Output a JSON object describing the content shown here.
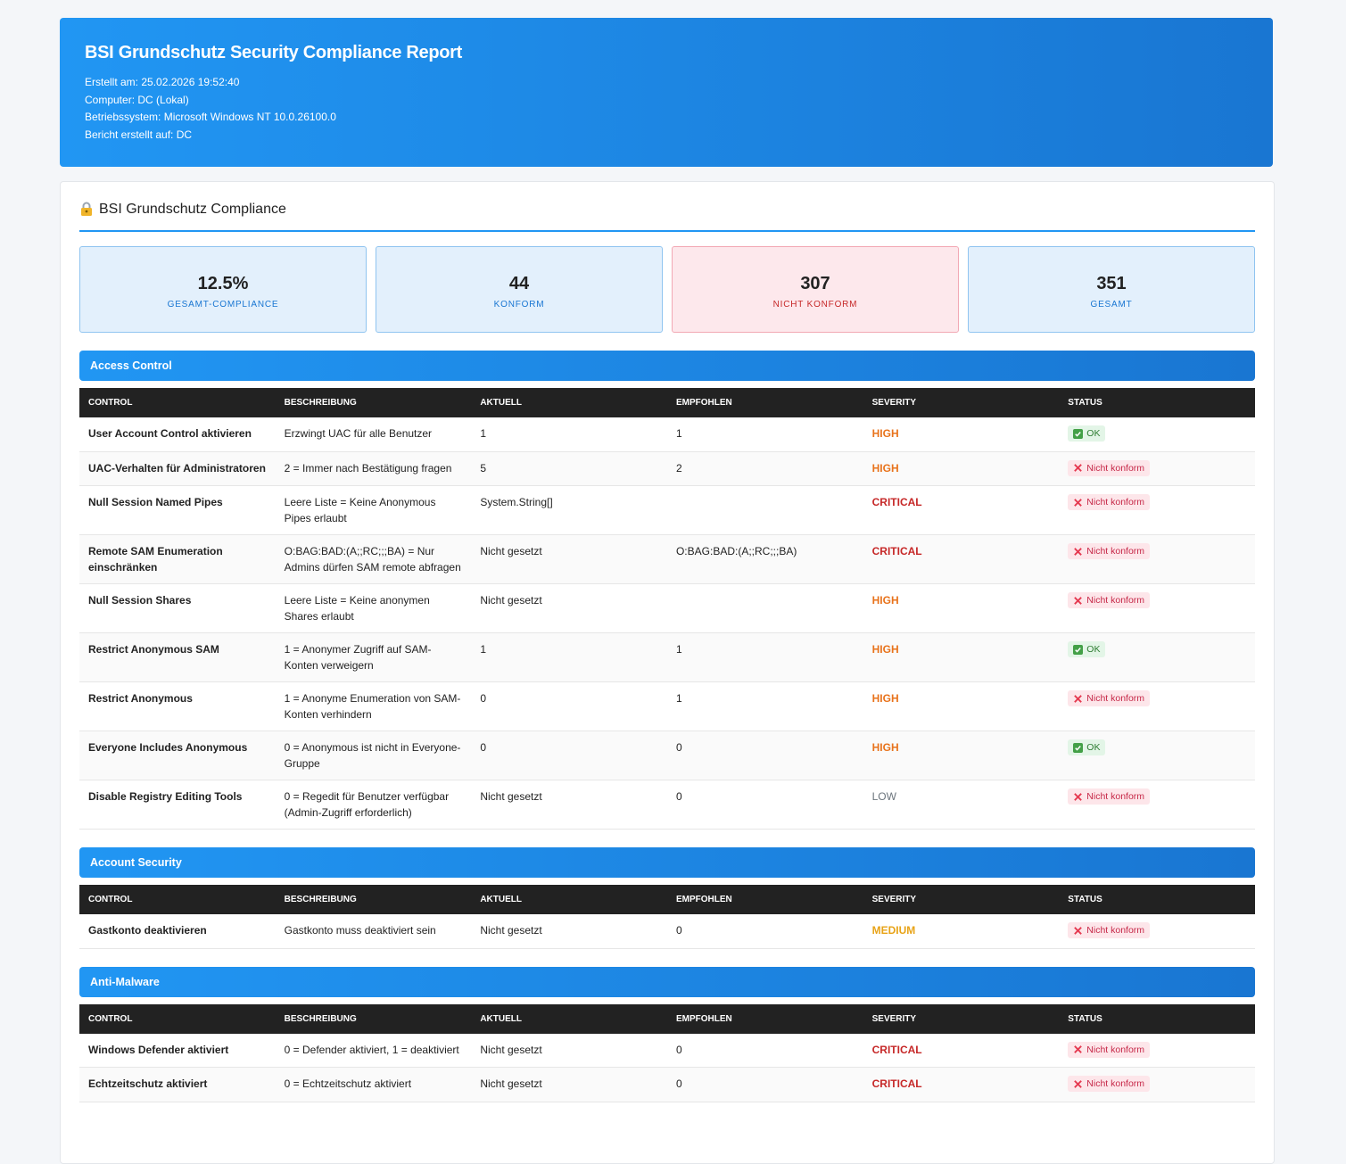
{
  "header": {
    "title": "BSI Grundschutz Security Compliance Report",
    "meta": [
      "Erstellt am: 25.02.2026 19:52:40",
      "Computer: DC (Lokal)",
      "Betriebssystem: Microsoft Windows NT 10.0.26100.0",
      "Bericht erstellt auf: DC"
    ]
  },
  "card": {
    "title": "BSI Grundschutz Compliance"
  },
  "stats": [
    {
      "value": "12.5%",
      "label": "GESAMT-COMPLIANCE",
      "tone": "info"
    },
    {
      "value": "44",
      "label": "KONFORM",
      "tone": "info"
    },
    {
      "value": "307",
      "label": "NICHT KONFORM",
      "tone": "danger"
    },
    {
      "value": "351",
      "label": "GESAMT",
      "tone": "info"
    }
  ],
  "columns": [
    "CONTROL",
    "BESCHREIBUNG",
    "AKTUELL",
    "EMPFOHLEN",
    "SEVERITY",
    "STATUS"
  ],
  "severity_colors": {
    "HIGH": "#e8731c",
    "CRITICAL": "#c62828",
    "MEDIUM": "#e8a317",
    "LOW": "#6c757d"
  },
  "status_styles": {
    "OK": {
      "bg": "#e3f5e7",
      "fg": "#2e7d32",
      "icon": "ok"
    },
    "Nicht konform": {
      "bg": "#fde6ea",
      "fg": "#c62848",
      "icon": "x"
    }
  },
  "sections": [
    {
      "title": "Access Control",
      "rows": [
        [
          "User Account Control aktivieren",
          "Erzwingt UAC für alle Benutzer",
          "1",
          "1",
          "HIGH",
          "OK"
        ],
        [
          "UAC-Verhalten für Administratoren",
          "2 = Immer nach Bestätigung fragen",
          "5",
          "2",
          "HIGH",
          "Nicht konform"
        ],
        [
          "Null Session Named Pipes",
          "Leere Liste = Keine Anonymous Pipes erlaubt",
          "System.String[]",
          null,
          "CRITICAL",
          "Nicht konform"
        ],
        [
          "Remote SAM Enumeration einschränken",
          "O:BAG:BAD:(A;;RC;;;BA) = Nur Admins dürfen SAM remote abfragen",
          "Nicht gesetzt",
          "O:BAG:BAD:(A;;RC;;;BA)",
          "CRITICAL",
          "Nicht konform"
        ],
        [
          "Null Session Shares",
          "Leere Liste = Keine anonymen Shares erlaubt",
          "Nicht gesetzt",
          null,
          "HIGH",
          "Nicht konform"
        ],
        [
          "Restrict Anonymous SAM",
          "1 = Anonymer Zugriff auf SAM-Konten verweigern",
          "1",
          "1",
          "HIGH",
          "OK"
        ],
        [
          "Restrict Anonymous",
          "1 = Anonyme Enumeration von SAM-Konten verhindern",
          "0",
          "1",
          "HIGH",
          "Nicht konform"
        ],
        [
          "Everyone Includes Anonymous",
          "0 = Anonymous ist nicht in Everyone-Gruppe",
          "0",
          "0",
          "HIGH",
          "OK"
        ],
        [
          "Disable Registry Editing Tools",
          "0 = Regedit für Benutzer verfügbar (Admin-Zugriff erforderlich)",
          "Nicht gesetzt",
          "0",
          "LOW",
          "Nicht konform"
        ]
      ]
    },
    {
      "title": "Account Security",
      "rows": [
        [
          "Gastkonto deaktivieren",
          "Gastkonto muss deaktiviert sein",
          "Nicht gesetzt",
          "0",
          "MEDIUM",
          "Nicht konform"
        ]
      ]
    },
    {
      "title": "Anti-Malware",
      "rows": [
        [
          "Windows Defender aktiviert",
          "0 = Defender aktiviert, 1 = deaktiviert",
          "Nicht gesetzt",
          "0",
          "CRITICAL",
          "Nicht konform"
        ],
        [
          "Echtzeitschutz aktiviert",
          "0 = Echtzeitschutz aktiviert",
          "Nicht gesetzt",
          "0",
          "CRITICAL",
          "Nicht konform"
        ]
      ]
    }
  ]
}
